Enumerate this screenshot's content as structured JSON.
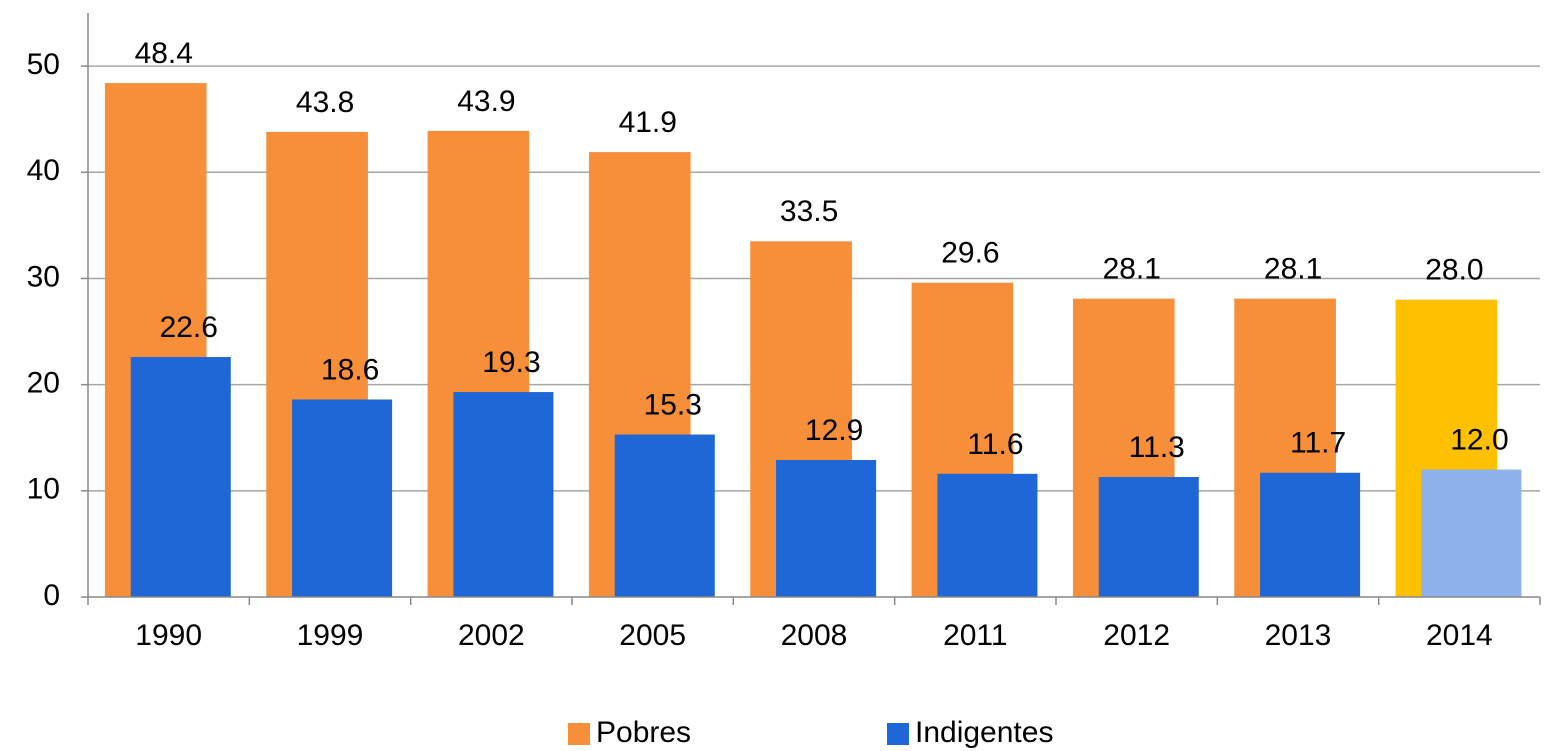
{
  "chart_data": {
    "type": "bar",
    "categories": [
      "1990",
      "1999",
      "2002",
      "2005",
      "2008",
      "2011",
      "2012",
      "2013",
      "2014"
    ],
    "series": [
      {
        "name": "Pobres",
        "color": "#f68e3a",
        "colors": [
          "#f68e3a",
          "#f68e3a",
          "#f68e3a",
          "#f68e3a",
          "#f68e3a",
          "#f68e3a",
          "#f68e3a",
          "#f68e3a",
          "#ffc000"
        ],
        "values": [
          48.4,
          43.8,
          43.9,
          41.9,
          33.5,
          29.6,
          28.1,
          28.1,
          28
        ],
        "value_labels": [
          "48.4",
          "43.8",
          "43.9",
          "41.9",
          "33.5",
          "29.6",
          "28.1",
          "28.1",
          "28.0"
        ]
      },
      {
        "name": "Indigentes",
        "color": "#1f66d6",
        "colors": [
          "#1f66d6",
          "#1f66d6",
          "#1f66d6",
          "#1f66d6",
          "#1f66d6",
          "#1f66d6",
          "#1f66d6",
          "#1f66d6",
          "#8db2ec"
        ],
        "values": [
          22.6,
          18.6,
          19.3,
          15.3,
          12.9,
          11.6,
          11.3,
          11.7,
          12
        ],
        "value_labels": [
          "22.6",
          "18.6",
          "19.3",
          "15.3",
          "12.9",
          "11.6",
          "11.3",
          "11.7",
          "12.0"
        ]
      }
    ],
    "ylim": [
      0,
      55
    ],
    "yticks": [
      0,
      10,
      20,
      30,
      40,
      50
    ],
    "grid": true,
    "legend": "bottom"
  }
}
